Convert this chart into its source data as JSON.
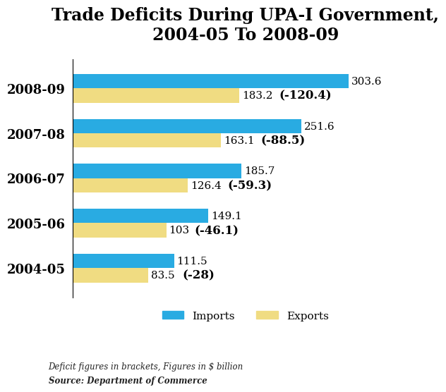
{
  "title": "Trade Deficits During UPA-I Government,\n2004-05 To 2008-09",
  "years": [
    "2004-05",
    "2005-06",
    "2006-07",
    "2007-08",
    "2008-09"
  ],
  "imports": [
    111.5,
    149.1,
    185.7,
    251.6,
    303.6
  ],
  "exports": [
    83.5,
    103.0,
    126.4,
    163.1,
    183.2
  ],
  "deficit_labels": [
    "(-28)",
    "(-46.1)",
    "(-59.3)",
    "(-88.5)",
    "(-120.4)"
  ],
  "export_labels": [
    "83.5",
    "103",
    "126.4",
    "163.1",
    "183.2"
  ],
  "import_labels": [
    "111.5",
    "149.1",
    "185.7",
    "251.6",
    "303.6"
  ],
  "import_color": "#29ABE2",
  "export_color": "#F0DC82",
  "bar_height": 0.32,
  "bar_gap": 0.0,
  "xlim": [
    0,
    380
  ],
  "background_color": "#ffffff",
  "title_fontsize": 17,
  "label_fontsize": 11,
  "tick_fontsize": 13,
  "deficit_fontsize": 12,
  "value_fontsize": 11,
  "footnote_italic": "Deficit figures in brackets, Figures in $ billion",
  "footnote_bold": "Source: Department of Commerce"
}
